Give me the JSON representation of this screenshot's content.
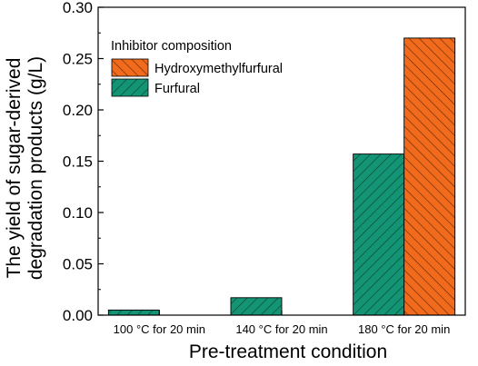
{
  "chart_data": {
    "type": "bar",
    "categories": [
      "100 °C for 20 min",
      "140 °C for 20 min",
      "180 °C for 20 min"
    ],
    "series": [
      {
        "name": "Furfural",
        "values": [
          0.005,
          0.017,
          0.157
        ],
        "color": "#139474",
        "hatch": "diagonal-down"
      },
      {
        "name": "Hydroxymethylfurfural",
        "values": [
          0,
          0,
          0.27
        ],
        "color": "#f26a1b",
        "hatch": "diagonal-up"
      }
    ],
    "title": "",
    "xlabel": "Pre-treatment condition",
    "ylabel_lines": [
      "The yield of sugar-derived",
      "degradation products (g/L)"
    ],
    "ylim": [
      0,
      0.3
    ],
    "yticks": [
      "0.00",
      "0.05",
      "0.10",
      "0.15",
      "0.20",
      "0.25",
      "0.30"
    ],
    "legend": {
      "title": "Inhibitor composition",
      "position": "top-left",
      "entries": [
        "Hydroxymethylfurfural",
        "Furfural"
      ]
    },
    "grid": false
  }
}
